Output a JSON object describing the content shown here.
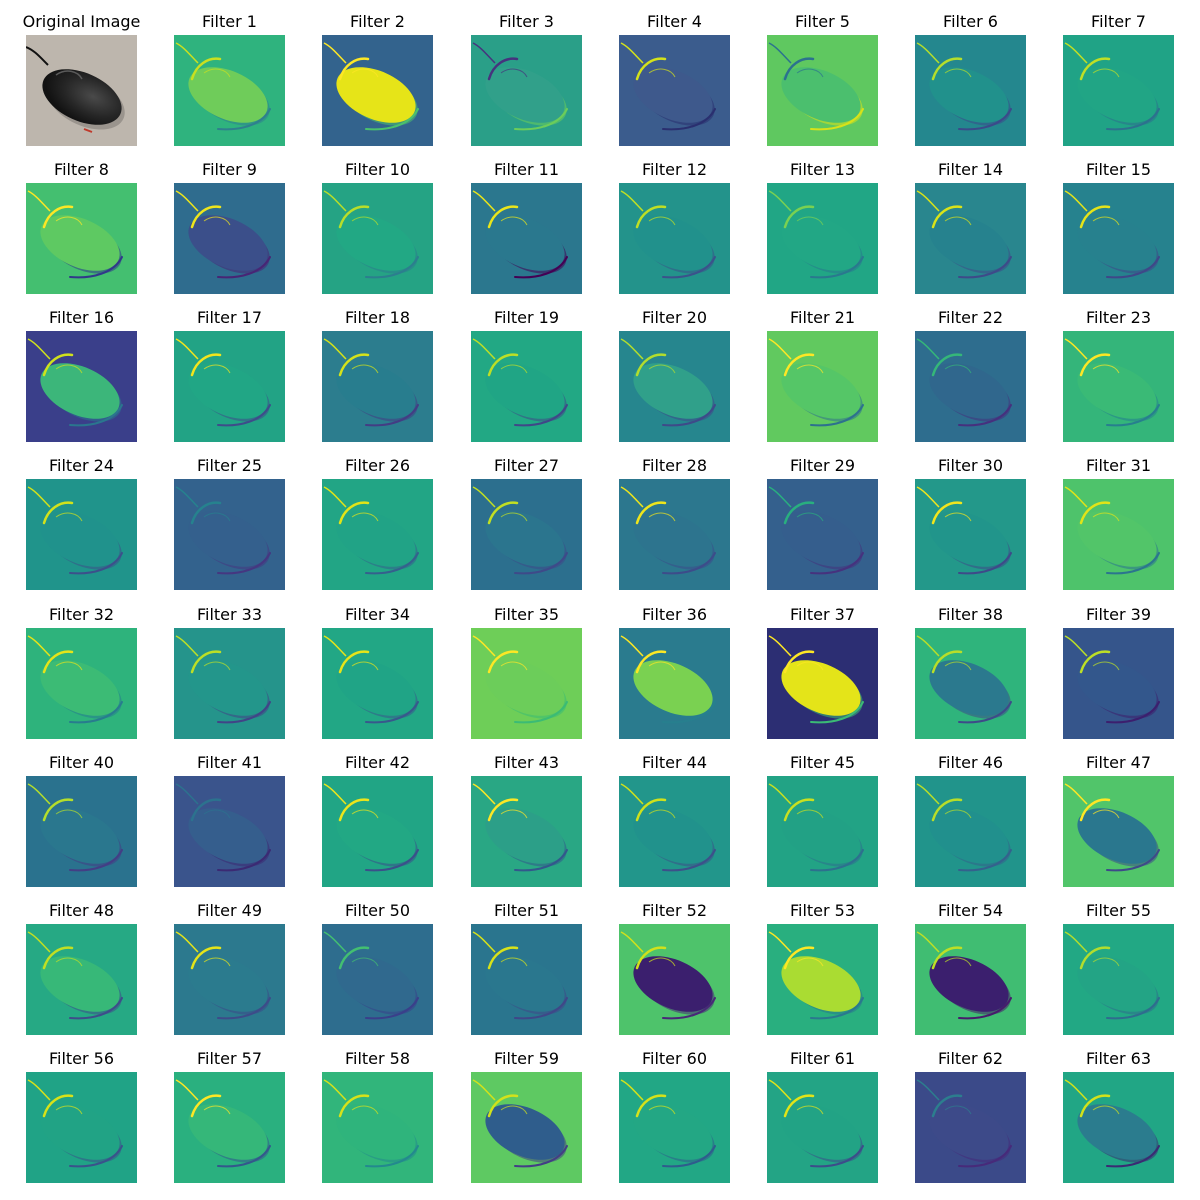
{
  "panels": [
    {
      "title": "Original Image",
      "kind": "photo"
    },
    {
      "title": "Filter 1",
      "bg": "#2fb37e",
      "body": "#6fcc5a",
      "edge": "#c9e020",
      "shade": "#2f7f8e"
    },
    {
      "title": "Filter 2",
      "bg": "#33638d",
      "body": "#e6e418",
      "edge": "#fde725",
      "shade": "#4ac16d"
    },
    {
      "title": "Filter 3",
      "bg": "#2a9f88",
      "body": "#31a08a",
      "edge": "#46337e",
      "shade": "#6ccd5a"
    },
    {
      "title": "Filter 4",
      "bg": "#3b5c8d",
      "body": "#3e598c",
      "edge": "#d4e21a",
      "shade": "#2a2f6f"
    },
    {
      "title": "Filter 5",
      "bg": "#5fc860",
      "body": "#4bbf6e",
      "edge": "#2c728e",
      "shade": "#d8e219"
    },
    {
      "title": "Filter 6",
      "bg": "#24878e",
      "body": "#21918c",
      "edge": "#b5de2b",
      "shade": "#3b4a8a"
    },
    {
      "title": "Filter 7",
      "bg": "#20a386",
      "body": "#21a585",
      "edge": "#c0df25",
      "shade": "#2d708e"
    },
    {
      "title": "Filter 8",
      "bg": "#44bf70",
      "body": "#5ec962",
      "edge": "#fde725",
      "shade": "#31388a"
    },
    {
      "title": "Filter 9",
      "bg": "#2f6c8e",
      "body": "#3b4f8a",
      "edge": "#eee51c",
      "shade": "#482575"
    },
    {
      "title": "Filter 10",
      "bg": "#25a384",
      "body": "#22a884",
      "edge": "#b8de29",
      "shade": "#2c7e8e"
    },
    {
      "title": "Filter 11",
      "bg": "#2b778e",
      "body": "#2a788e",
      "edge": "#eae51a",
      "shade": "#440154"
    },
    {
      "title": "Filter 12",
      "bg": "#23938b",
      "body": "#21918c",
      "edge": "#bfdf24",
      "shade": "#3b528b"
    },
    {
      "title": "Filter 13",
      "bg": "#21a685",
      "body": "#22a785",
      "edge": "#7ad151",
      "shade": "#2a788e"
    },
    {
      "title": "Filter 14",
      "bg": "#29868e",
      "body": "#26828e",
      "edge": "#dae319",
      "shade": "#3e4a89"
    },
    {
      "title": "Filter 15",
      "bg": "#26828e",
      "body": "#27818e",
      "edge": "#e5e419",
      "shade": "#3f4788"
    },
    {
      "title": "Filter 16",
      "bg": "#3a3f8a",
      "body": "#3cb67a",
      "edge": "#d0e11c",
      "shade": "#2a768e"
    },
    {
      "title": "Filter 17",
      "bg": "#22a385",
      "body": "#21a685",
      "edge": "#f2e51d",
      "shade": "#3e4c8a"
    },
    {
      "title": "Filter 18",
      "bg": "#2c7d8e",
      "body": "#287d8e",
      "edge": "#d5e21a",
      "shade": "#433d84"
    },
    {
      "title": "Filter 19",
      "bg": "#22a884",
      "body": "#20a585",
      "edge": "#bddf26",
      "shade": "#404788"
    },
    {
      "title": "Filter 20",
      "bg": "#26868e",
      "body": "#30a08a",
      "edge": "#b2dd2d",
      "shade": "#3e4a89"
    },
    {
      "title": "Filter 21",
      "bg": "#61c95f",
      "body": "#55c667",
      "edge": "#fde725",
      "shade": "#2d718e"
    },
    {
      "title": "Filter 22",
      "bg": "#2e6d8e",
      "body": "#30678d",
      "edge": "#35b779",
      "shade": "#46307e"
    },
    {
      "title": "Filter 23",
      "bg": "#34b57a",
      "body": "#3aba76",
      "edge": "#fde725",
      "shade": "#277f8e"
    },
    {
      "title": "Filter 24",
      "bg": "#20948b",
      "body": "#20928c",
      "edge": "#d2e21b",
      "shade": "#3c508b"
    },
    {
      "title": "Filter 25",
      "bg": "#33628d",
      "body": "#34608d",
      "edge": "#26828e",
      "shade": "#453781"
    },
    {
      "title": "Filter 26",
      "bg": "#22a585",
      "body": "#21a386",
      "edge": "#e2e418",
      "shade": "#35608d"
    },
    {
      "title": "Filter 27",
      "bg": "#2c6f8e",
      "body": "#2b758e",
      "edge": "#c2df23",
      "shade": "#3e4a89"
    },
    {
      "title": "Filter 28",
      "bg": "#2c778e",
      "body": "#2d748e",
      "edge": "#efe51c",
      "shade": "#3d4c8a"
    },
    {
      "title": "Filter 29",
      "bg": "#34608d",
      "body": "#355e8d",
      "edge": "#29af7f",
      "shade": "#46327e"
    },
    {
      "title": "Filter 30",
      "bg": "#23988a",
      "body": "#21958b",
      "edge": "#f1e51d",
      "shade": "#3e4a89"
    },
    {
      "title": "Filter 31",
      "bg": "#4ec36b",
      "body": "#52c569",
      "edge": "#e1e418",
      "shade": "#2b758e"
    },
    {
      "title": "Filter 32",
      "bg": "#2eb37c",
      "body": "#3cbb75",
      "edge": "#e5e419",
      "shade": "#287c8e"
    },
    {
      "title": "Filter 33",
      "bg": "#25948b",
      "body": "#23968b",
      "edge": "#bddf26",
      "shade": "#414487"
    },
    {
      "title": "Filter 34",
      "bg": "#22a785",
      "body": "#20a486",
      "edge": "#e7e419",
      "shade": "#38588c"
    },
    {
      "title": "Filter 35",
      "bg": "#6ece58",
      "body": "#6ccd5a",
      "edge": "#fde725",
      "shade": "#3bbb75"
    },
    {
      "title": "Filter 36",
      "bg": "#2a7b8e",
      "body": "#7ad151",
      "edge": "#fde725",
      "shade": "#277f8e"
    },
    {
      "title": "Filter 37",
      "bg": "#2c2e73",
      "body": "#e4e419",
      "edge": "#fde725",
      "shade": "#3bbb75"
    },
    {
      "title": "Filter 38",
      "bg": "#2fb47c",
      "body": "#2b798e",
      "edge": "#b8de29",
      "shade": "#3e4a89"
    },
    {
      "title": "Filter 39",
      "bg": "#35558b",
      "body": "#33578c",
      "edge": "#bddf26",
      "shade": "#3c1f6e"
    },
    {
      "title": "Filter 40",
      "bg": "#2a728e",
      "body": "#2a778e",
      "edge": "#b5de2b",
      "shade": "#433e85"
    },
    {
      "title": "Filter 41",
      "bg": "#3a548c",
      "body": "#355e8d",
      "edge": "#2c728e",
      "shade": "#3b2a73"
    },
    {
      "title": "Filter 42",
      "bg": "#21a585",
      "body": "#22a884",
      "edge": "#ede51b",
      "shade": "#3b508a"
    },
    {
      "title": "Filter 43",
      "bg": "#29a784",
      "body": "#2c9f88",
      "edge": "#fde725",
      "shade": "#33578c"
    },
    {
      "title": "Filter 44",
      "bg": "#22968b",
      "body": "#21928c",
      "edge": "#d0e11c",
      "shade": "#3d508a"
    },
    {
      "title": "Filter 45",
      "bg": "#22a385",
      "body": "#22a185",
      "edge": "#c9e020",
      "shade": "#2d708e"
    },
    {
      "title": "Filter 46",
      "bg": "#21948b",
      "body": "#21908d",
      "edge": "#b8de29",
      "shade": "#34618d"
    },
    {
      "title": "Filter 47",
      "bg": "#51c56a",
      "body": "#2a778e",
      "edge": "#fde725",
      "shade": "#3e4a89"
    },
    {
      "title": "Filter 48",
      "bg": "#26a984",
      "body": "#37b878",
      "edge": "#c2df23",
      "shade": "#3e4c8a"
    },
    {
      "title": "Filter 49",
      "bg": "#2c798e",
      "body": "#2b7b8e",
      "edge": "#e5e419",
      "shade": "#3d4b89"
    },
    {
      "title": "Filter 50",
      "bg": "#2e6d8e",
      "body": "#30698e",
      "edge": "#43bf71",
      "shade": "#3a3f8a"
    },
    {
      "title": "Filter 51",
      "bg": "#2a758e",
      "body": "#2a778e",
      "edge": "#d8e219",
      "shade": "#3f4788"
    },
    {
      "title": "Filter 52",
      "bg": "#4ec36b",
      "body": "#3b1f6e",
      "edge": "#d0e11c",
      "shade": "#482878"
    },
    {
      "title": "Filter 53",
      "bg": "#29af7f",
      "body": "#aadc32",
      "edge": "#fde725",
      "shade": "#2a788e"
    },
    {
      "title": "Filter 54",
      "bg": "#40bd72",
      "body": "#3b1f6e",
      "edge": "#bddf26",
      "shade": "#471b6c"
    },
    {
      "title": "Filter 55",
      "bg": "#22a884",
      "body": "#23a485",
      "edge": "#b2dd2d",
      "shade": "#2f6c8e"
    },
    {
      "title": "Filter 56",
      "bg": "#20a386",
      "body": "#21a385",
      "edge": "#d8e219",
      "shade": "#3a528b"
    },
    {
      "title": "Filter 57",
      "bg": "#2ab07f",
      "body": "#35b779",
      "edge": "#fde725",
      "shade": "#34578c"
    },
    {
      "title": "Filter 58",
      "bg": "#31b57b",
      "body": "#2fb47c",
      "edge": "#d6e21a",
      "shade": "#23898e"
    },
    {
      "title": "Filter 59",
      "bg": "#5ec962",
      "body": "#2f5d8c",
      "edge": "#d2e21b",
      "shade": "#433e85"
    },
    {
      "title": "Filter 60",
      "bg": "#22a785",
      "body": "#23a784",
      "edge": "#d5e21a",
      "shade": "#2f5c8d"
    },
    {
      "title": "Filter 61",
      "bg": "#23a485",
      "body": "#22a385",
      "edge": "#e2e418",
      "shade": "#3d4c8a"
    },
    {
      "title": "Filter 62",
      "bg": "#3b4a89",
      "body": "#3d4a89",
      "edge": "#2c7e8e",
      "shade": "#472a7a"
    },
    {
      "title": "Filter 63",
      "bg": "#21a685",
      "body": "#2b7c8e",
      "edge": "#d2e21b",
      "shade": "#3b2a73"
    }
  ]
}
